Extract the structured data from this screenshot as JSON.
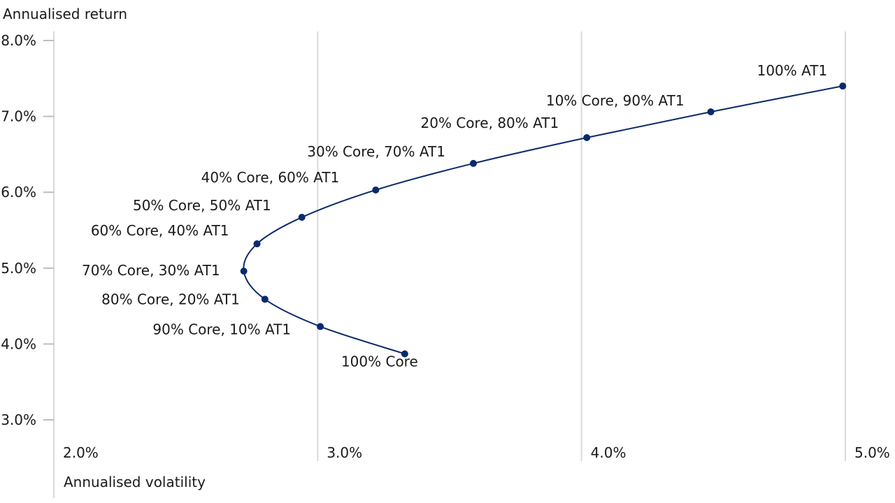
{
  "chart_data": {
    "type": "line",
    "xlabel": "Annualised volatility",
    "ylabel": "Annualised return",
    "xlim": [
      2.0,
      5.0
    ],
    "ylim": [
      3.0,
      8.0
    ],
    "x_ticks": [
      "2.0%",
      "3.0%",
      "4.0%",
      "5.0%"
    ],
    "x_tick_values": [
      2.0,
      3.0,
      4.0,
      5.0
    ],
    "y_ticks": [
      "3.0%",
      "4.0%",
      "5.0%",
      "6.0%",
      "7.0%",
      "8.0%"
    ],
    "y_tick_values": [
      3.0,
      4.0,
      5.0,
      6.0,
      7.0,
      8.0
    ],
    "grid": "vertical",
    "line_color": "#0b2a6b",
    "series": [
      {
        "points": [
          {
            "label": "100% Core",
            "x": 3.33,
            "y": 3.87
          },
          {
            "label": "90% Core, 10% AT1",
            "x": 3.01,
            "y": 4.23
          },
          {
            "label": "80% Core, 20% AT1",
            "x": 2.8,
            "y": 4.59
          },
          {
            "label": "70% Core, 30% AT1",
            "x": 2.72,
            "y": 4.96
          },
          {
            "label": "60% Core, 40% AT1",
            "x": 2.77,
            "y": 5.32
          },
          {
            "label": "50% Core, 50% AT1",
            "x": 2.94,
            "y": 5.67
          },
          {
            "label": "40% Core, 60% AT1",
            "x": 3.22,
            "y": 6.03
          },
          {
            "label": "30% Core, 70% AT1",
            "x": 3.59,
            "y": 6.38
          },
          {
            "label": "20% Core, 80% AT1",
            "x": 4.02,
            "y": 6.72
          },
          {
            "label": "10% Core, 90% AT1",
            "x": 4.49,
            "y": 7.06
          },
          {
            "label": "100% AT1",
            "x": 4.99,
            "y": 7.4
          }
        ]
      }
    ]
  }
}
